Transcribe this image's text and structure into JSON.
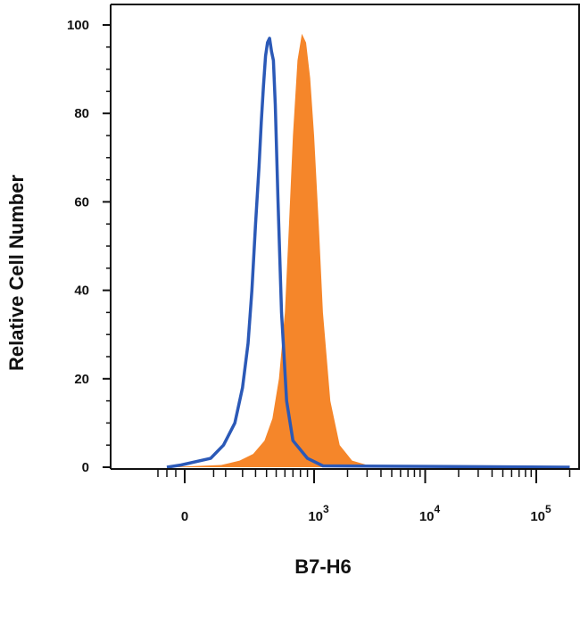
{
  "chart_data": {
    "type": "area",
    "title": "",
    "xlabel": "B7-H6",
    "ylabel": "Relative Cell Number",
    "x_scale": "biexponential",
    "xlim": [
      -200,
      200000
    ],
    "ylim": [
      0,
      100
    ],
    "grid": false,
    "legend": "none",
    "yticks": [
      0,
      20,
      40,
      60,
      80,
      100
    ],
    "ytick_labels": [
      "0",
      "20",
      "40",
      "60",
      "80",
      "100"
    ],
    "xticks": [
      0,
      1000,
      10000,
      100000
    ],
    "xtick_labels": [
      {
        "base": "0",
        "exp": ""
      },
      {
        "base": "10",
        "exp": "3"
      },
      {
        "base": "10",
        "exp": "4"
      },
      {
        "base": "10",
        "exp": "5"
      }
    ],
    "series": [
      {
        "style": "outline",
        "color": "#2b59b7",
        "x": [
          -100,
          -20,
          40,
          90,
          150,
          200,
          240,
          270,
          300,
          330,
          350,
          370,
          390,
          410,
          430,
          450,
          470,
          490,
          520,
          560,
          620,
          700,
          900,
          1200,
          200000
        ],
        "y": [
          0,
          0.5,
          2,
          5,
          10,
          18,
          28,
          40,
          55,
          68,
          78,
          86,
          93,
          96,
          97,
          94,
          92,
          82,
          60,
          35,
          15,
          6,
          2,
          0.3,
          0
        ]
      },
      {
        "style": "filled",
        "color": "#f5862a",
        "x": [
          -100,
          80,
          180,
          280,
          380,
          460,
          530,
          600,
          650,
          700,
          760,
          820,
          880,
          940,
          1000,
          1100,
          1200,
          1400,
          1700,
          2200,
          3000,
          200000
        ],
        "y": [
          0,
          0.5,
          1.5,
          3,
          6,
          11,
          20,
          35,
          55,
          75,
          92,
          98,
          96,
          88,
          75,
          55,
          35,
          15,
          5,
          1.5,
          0.5,
          0
        ]
      }
    ]
  }
}
